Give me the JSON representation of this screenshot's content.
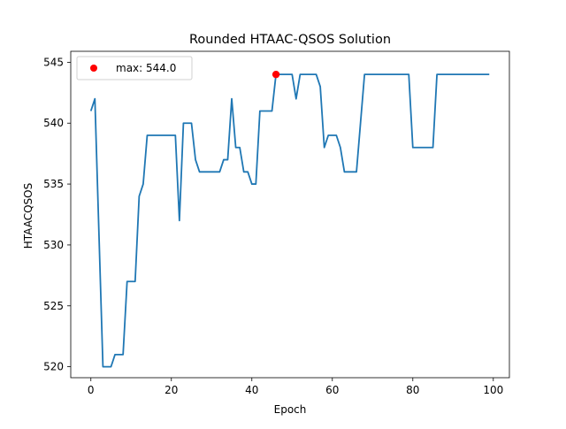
{
  "chart_data": {
    "type": "line",
    "title": "Rounded HTAAC-QSOS Solution",
    "xlabel": "Epoch",
    "ylabel": "HTAACQSOS",
    "xlim": [
      -5,
      104
    ],
    "ylim": [
      519.1,
      545.9
    ],
    "xticks": [
      0,
      20,
      40,
      60,
      80,
      100
    ],
    "yticks": [
      520,
      525,
      530,
      535,
      540,
      545
    ],
    "grid": false,
    "legend_position": "top-left",
    "series": [
      {
        "color": "#1f77b4",
        "x": [
          0,
          1,
          2,
          3,
          4,
          5,
          6,
          7,
          8,
          9,
          10,
          11,
          12,
          13,
          14,
          15,
          16,
          17,
          18,
          19,
          20,
          21,
          22,
          23,
          24,
          25,
          26,
          27,
          28,
          29,
          30,
          31,
          32,
          33,
          34,
          35,
          36,
          37,
          38,
          39,
          40,
          41,
          42,
          43,
          44,
          45,
          46,
          47,
          48,
          49,
          50,
          51,
          52,
          53,
          54,
          55,
          56,
          57,
          58,
          59,
          60,
          61,
          62,
          63,
          64,
          65,
          66,
          67,
          68,
          69,
          70,
          71,
          72,
          73,
          74,
          75,
          76,
          77,
          78,
          79,
          80,
          81,
          82,
          83,
          84,
          85,
          86,
          87,
          88,
          89,
          90,
          91,
          92,
          93,
          94,
          95,
          96,
          97,
          98,
          99
        ],
        "y": [
          541,
          542,
          531,
          520,
          520,
          520,
          521,
          521,
          521,
          527,
          527,
          527,
          534,
          535,
          539,
          539,
          539,
          539,
          539,
          539,
          539,
          539,
          532,
          540,
          540,
          540,
          537,
          536,
          536,
          536,
          536,
          536,
          536,
          537,
          537,
          542,
          538,
          538,
          536,
          536,
          535,
          535,
          541,
          541,
          541,
          541,
          544,
          544,
          544,
          544,
          544,
          542,
          544,
          544,
          544,
          544,
          544,
          543,
          538,
          539,
          539,
          539,
          538,
          536,
          536,
          536,
          536,
          540,
          544,
          544,
          544,
          544,
          544,
          544,
          544,
          544,
          544,
          544,
          544,
          544,
          538,
          538,
          538,
          538,
          538,
          538,
          544,
          544,
          544,
          544,
          544,
          544,
          544,
          544,
          544,
          544,
          544,
          544,
          544,
          544
        ]
      }
    ],
    "max_marker": {
      "x": 46,
      "y": 544.0,
      "color": "#ff0000",
      "legend_label": "max: 544.0"
    }
  }
}
